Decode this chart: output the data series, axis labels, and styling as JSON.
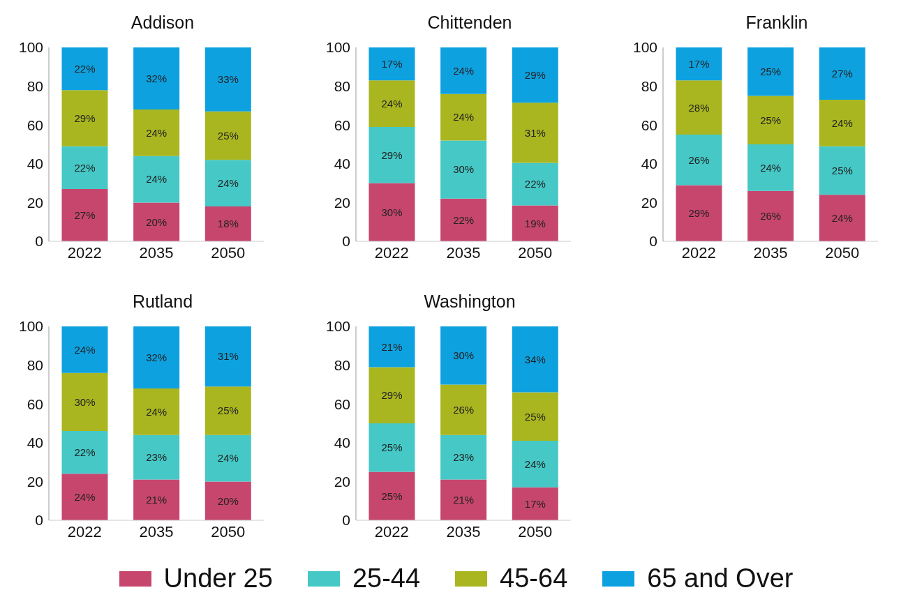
{
  "chart_data": [
    {
      "type": "bar",
      "title": "Addison",
      "categories": [
        "2022",
        "2035",
        "2050"
      ],
      "stacked": true,
      "ylim": [
        0,
        100
      ],
      "yticks": [
        0,
        20,
        40,
        60,
        80,
        100
      ],
      "legend": "bottom",
      "series": [
        {
          "name": "Under 25",
          "color": "#c6466e",
          "values": [
            27,
            20,
            18
          ],
          "value_labels": [
            "27%",
            "20%",
            "18%"
          ]
        },
        {
          "name": "25-44",
          "color": "#45c8c6",
          "values": [
            22,
            24,
            24
          ],
          "value_labels": [
            "22%",
            "24%",
            "24%"
          ]
        },
        {
          "name": "45-64",
          "color": "#a9b61f",
          "values": [
            29,
            24,
            25
          ],
          "value_labels": [
            "29%",
            "24%",
            "25%"
          ]
        },
        {
          "name": "65 and Over",
          "color": "#0ea1e0",
          "values": [
            22,
            32,
            33
          ],
          "value_labels": [
            "22%",
            "32%",
            "33%"
          ]
        }
      ]
    },
    {
      "type": "bar",
      "title": "Chittenden",
      "categories": [
        "2022",
        "2035",
        "2050"
      ],
      "stacked": true,
      "ylim": [
        0,
        100
      ],
      "yticks": [
        0,
        20,
        40,
        60,
        80,
        100
      ],
      "series": [
        {
          "color": "#c6466e",
          "values": [
            30,
            22,
            18.5
          ],
          "value_labels": [
            "30%",
            "22%",
            "19%"
          ]
        },
        {
          "color": "#45c8c6",
          "values": [
            29,
            30,
            22
          ],
          "value_labels": [
            "29%",
            "30%",
            "22%"
          ]
        },
        {
          "color": "#a9b61f",
          "values": [
            24,
            24,
            31
          ],
          "value_labels": [
            "24%",
            "24%",
            "31%"
          ]
        },
        {
          "color": "#0ea1e0",
          "values": [
            17,
            24,
            28.5
          ],
          "value_labels": [
            "17%",
            "24%",
            "29%"
          ]
        }
      ]
    },
    {
      "type": "bar",
      "title": "Franklin",
      "categories": [
        "2022",
        "2035",
        "2050"
      ],
      "stacked": true,
      "ylim": [
        0,
        100
      ],
      "yticks": [
        0,
        20,
        40,
        60,
        80,
        100
      ],
      "series": [
        {
          "color": "#c6466e",
          "values": [
            29,
            26,
            24
          ],
          "value_labels": [
            "29%",
            "26%",
            "24%"
          ]
        },
        {
          "color": "#45c8c6",
          "values": [
            26,
            24,
            25
          ],
          "value_labels": [
            "26%",
            "24%",
            "25%"
          ]
        },
        {
          "color": "#a9b61f",
          "values": [
            28,
            25,
            24
          ],
          "value_labels": [
            "28%",
            "25%",
            "24%"
          ]
        },
        {
          "color": "#0ea1e0",
          "values": [
            17,
            25,
            27
          ],
          "value_labels": [
            "17%",
            "25%",
            "27%"
          ]
        }
      ]
    },
    {
      "type": "bar",
      "title": "Rutland",
      "categories": [
        "2022",
        "2035",
        "2050"
      ],
      "stacked": true,
      "ylim": [
        0,
        100
      ],
      "yticks": [
        0,
        20,
        40,
        60,
        80,
        100
      ],
      "series": [
        {
          "color": "#c6466e",
          "values": [
            24,
            21,
            20
          ],
          "value_labels": [
            "24%",
            "21%",
            "20%"
          ]
        },
        {
          "color": "#45c8c6",
          "values": [
            22,
            23,
            24
          ],
          "value_labels": [
            "22%",
            "23%",
            "24%"
          ]
        },
        {
          "color": "#a9b61f",
          "values": [
            30,
            24,
            25
          ],
          "value_labels": [
            "30%",
            "24%",
            "25%"
          ]
        },
        {
          "color": "#0ea1e0",
          "values": [
            24,
            32,
            31
          ],
          "value_labels": [
            "24%",
            "32%",
            "31%"
          ]
        }
      ]
    },
    {
      "type": "bar",
      "title": "Washington",
      "categories": [
        "2022",
        "2035",
        "2050"
      ],
      "stacked": true,
      "ylim": [
        0,
        100
      ],
      "yticks": [
        0,
        20,
        40,
        60,
        80,
        100
      ],
      "series": [
        {
          "color": "#c6466e",
          "values": [
            25,
            21,
            17
          ],
          "value_labels": [
            "25%",
            "21%",
            "17%"
          ]
        },
        {
          "color": "#45c8c6",
          "values": [
            25,
            23,
            24
          ],
          "value_labels": [
            "25%",
            "23%",
            "24%"
          ]
        },
        {
          "color": "#a9b61f",
          "values": [
            29,
            26,
            25
          ],
          "value_labels": [
            "29%",
            "26%",
            "25%"
          ]
        },
        {
          "color": "#0ea1e0",
          "values": [
            21,
            30,
            34
          ],
          "value_labels": [
            "21%",
            "30%",
            "34%"
          ]
        }
      ]
    }
  ]
}
